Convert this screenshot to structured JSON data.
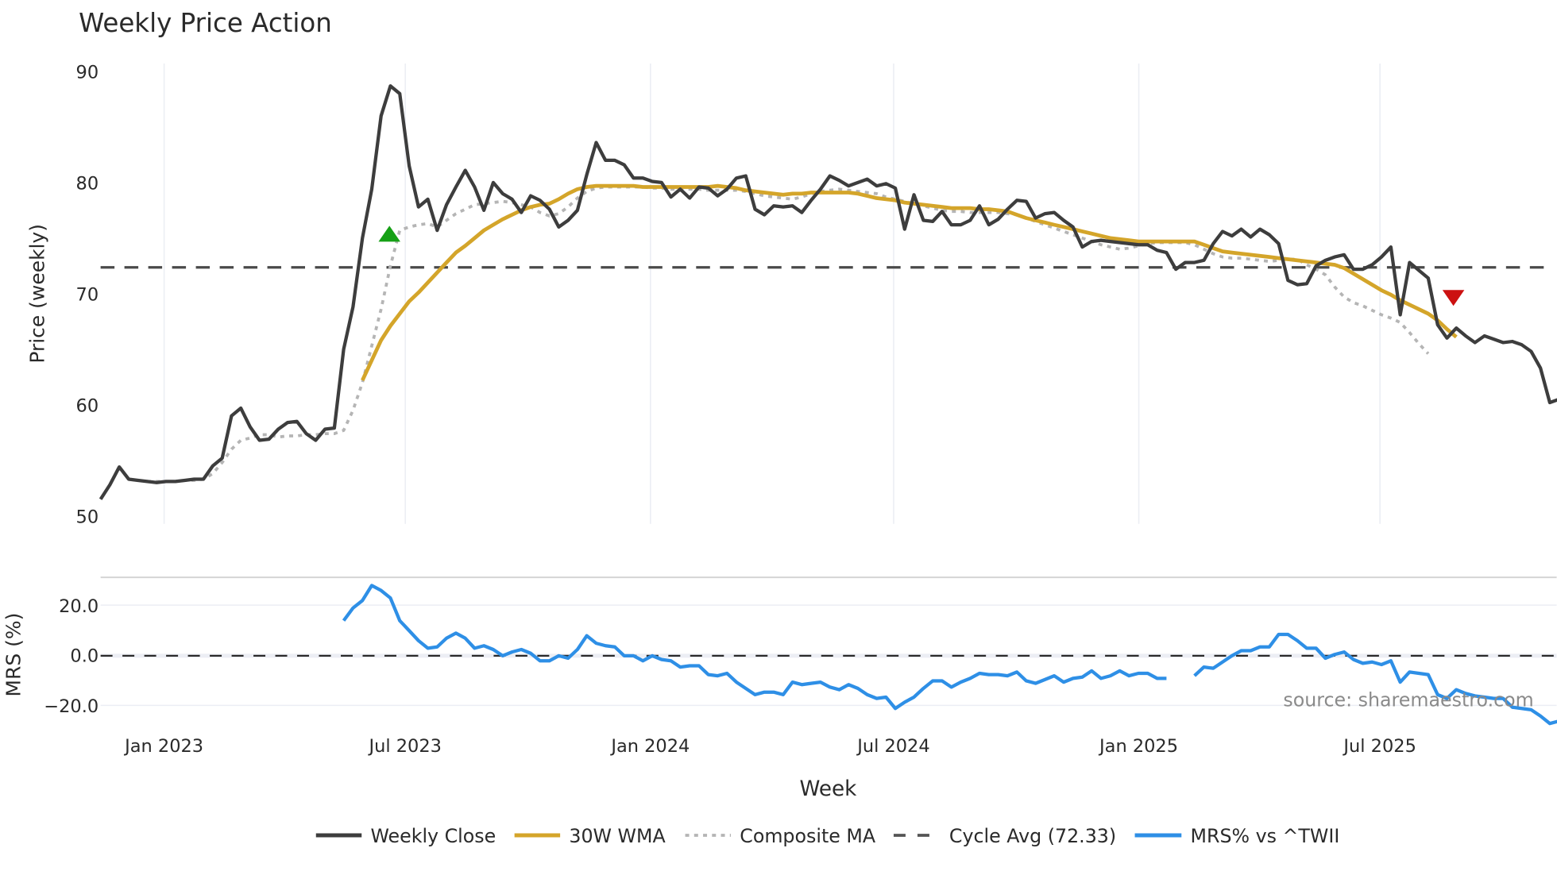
{
  "chart_data": [
    {
      "type": "line",
      "title": "Weekly Price Action",
      "xlabel": "Week",
      "ylabel": "Price (weekly)",
      "ylim": [
        50,
        90
      ],
      "yticks": [
        50,
        60,
        70,
        80,
        90
      ],
      "xticks": [
        "Jan 2023",
        "Jul 2023",
        "Jan 2024",
        "Jul 2024",
        "Jan 2025",
        "Jul 2025"
      ],
      "grid": "vertical",
      "legend_position": "bottom",
      "series": [
        {
          "name": "Weekly Close",
          "color": "#3d3d3d",
          "values": [
            51.5,
            52.8,
            54.4,
            53.3,
            53.2,
            53.1,
            53.0,
            53.1,
            53.1,
            53.2,
            53.3,
            53.3,
            54.5,
            55.2,
            59.0,
            59.7,
            58.0,
            56.8,
            56.9,
            57.8,
            58.4,
            58.5,
            57.4,
            56.8,
            57.8,
            57.9,
            65.0,
            68.8,
            75.0,
            79.4,
            86.0,
            88.7,
            88.0,
            81.5,
            77.8,
            78.5,
            75.7,
            78.0,
            79.6,
            81.1,
            79.6,
            77.5,
            80.0,
            79.0,
            78.5,
            77.3,
            78.8,
            78.4,
            77.6,
            76.0,
            76.6,
            77.5,
            80.7,
            83.6,
            82.0,
            82.0,
            81.6,
            80.4,
            80.4,
            80.1,
            80.0,
            78.7,
            79.4,
            78.6,
            79.6,
            79.5,
            78.8,
            79.4,
            80.4,
            80.6,
            77.6,
            77.1,
            77.9,
            77.8,
            77.9,
            77.3,
            78.4,
            79.4,
            80.6,
            80.2,
            79.7,
            80.0,
            80.3,
            79.7,
            79.9,
            79.5,
            75.8,
            78.9,
            76.6,
            76.5,
            77.4,
            76.2,
            76.2,
            76.6,
            77.9,
            76.2,
            76.7,
            77.6,
            78.4,
            78.3,
            76.8,
            77.2,
            77.3,
            76.6,
            76.0,
            74.2,
            74.7,
            74.8,
            74.7,
            74.6,
            74.5,
            74.4,
            74.4,
            73.9,
            73.7,
            72.2,
            72.8,
            72.8,
            73.0,
            74.5,
            75.6,
            75.2,
            75.8,
            75.1,
            75.8,
            75.3,
            74.5,
            71.2,
            70.8,
            70.9,
            72.5,
            73.0,
            73.3,
            73.5,
            72.2,
            72.2,
            72.6,
            73.3,
            74.2,
            68.1,
            72.8,
            72.1,
            71.4,
            67.2,
            66.0,
            66.9,
            66.2,
            65.6,
            66.2,
            65.9,
            65.6,
            65.7,
            65.4,
            64.8,
            63.3,
            60.2,
            60.5,
            60.3
          ]
        },
        {
          "name": "30W WMA",
          "color": "#d4a52a",
          "start_index": 28,
          "values": [
            62.2,
            64.0,
            65.8,
            67.1,
            68.2,
            69.3,
            70.1,
            71.0,
            71.9,
            72.8,
            73.7,
            74.3,
            75.0,
            75.7,
            76.2,
            76.7,
            77.1,
            77.5,
            77.8,
            78.0,
            78.1,
            78.5,
            79.0,
            79.4,
            79.6,
            79.7,
            79.7,
            79.7,
            79.7,
            79.7,
            79.6,
            79.6,
            79.6,
            79.6,
            79.6,
            79.6,
            79.6,
            79.6,
            79.7,
            79.6,
            79.5,
            79.3,
            79.2,
            79.1,
            79.0,
            78.9,
            79.0,
            79.0,
            79.1,
            79.1,
            79.1,
            79.1,
            79.1,
            79.0,
            78.8,
            78.6,
            78.5,
            78.4,
            78.2,
            78.1,
            78.0,
            77.9,
            77.8,
            77.7,
            77.7,
            77.7,
            77.6,
            77.6,
            77.5,
            77.4,
            77.1,
            76.8,
            76.6,
            76.4,
            76.2,
            76.0,
            75.8,
            75.6,
            75.4,
            75.2,
            75.0,
            74.9,
            74.8,
            74.7,
            74.7,
            74.7,
            74.7,
            74.7,
            74.7,
            74.7,
            74.4,
            74.1,
            73.8,
            73.7,
            73.6,
            73.5,
            73.4,
            73.3,
            73.2,
            73.1,
            73.0,
            72.9,
            72.8,
            72.7,
            72.6,
            72.3,
            71.8,
            71.3,
            70.8,
            70.3,
            69.9,
            69.4,
            69.0,
            68.6,
            68.2,
            67.6,
            66.8,
            66.1
          ]
        },
        {
          "name": "Composite MA",
          "color": "#b5b5b5",
          "start_index": 4,
          "values": [
            53.2,
            53.1,
            53.1,
            53.1,
            53.1,
            53.2,
            53.2,
            53.3,
            53.8,
            54.8,
            56.0,
            56.8,
            57.0,
            57.3,
            57.3,
            57.1,
            57.2,
            57.2,
            57.3,
            57.3,
            57.4,
            57.4,
            57.7,
            59.5,
            62.0,
            65.3,
            68.6,
            72.5,
            75.7,
            76.0,
            76.2,
            76.3,
            76.0,
            76.6,
            77.2,
            77.6,
            78.0,
            78.1,
            78.2,
            78.3,
            78.2,
            78.0,
            77.8,
            77.3,
            77.0,
            77.2,
            77.8,
            78.6,
            79.2,
            79.5,
            79.6,
            79.6,
            79.6,
            79.6,
            79.6,
            79.5,
            79.5,
            79.4,
            79.4,
            79.4,
            79.4,
            79.3,
            79.3,
            79.3,
            79.3,
            79.2,
            79.0,
            78.8,
            78.7,
            78.6,
            78.5,
            78.7,
            79.0,
            79.2,
            79.3,
            79.4,
            79.3,
            79.2,
            79.1,
            79.0,
            78.7,
            78.5,
            78.3,
            78.1,
            77.9,
            77.7,
            77.5,
            77.4,
            77.4,
            77.3,
            77.3,
            77.3,
            77.3,
            77.2,
            77.1,
            76.8,
            76.5,
            76.2,
            75.9,
            75.6,
            75.3,
            75.0,
            74.7,
            74.4,
            74.2,
            74.0,
            74.1,
            74.3,
            74.5,
            74.6,
            74.6,
            74.6,
            74.6,
            74.4,
            74.0,
            73.6,
            73.3,
            73.2,
            73.2,
            73.1,
            73.0,
            72.9,
            73.0,
            73.1,
            73.1,
            72.6,
            72.2,
            71.7,
            70.6,
            69.7,
            69.2,
            68.9,
            68.5,
            68.1,
            67.8,
            67.4,
            66.5,
            65.5,
            64.6
          ]
        },
        {
          "name": "Cycle Avg (72.33)",
          "color": "#4a4a4a",
          "constant": 72.33
        }
      ],
      "annotations": [
        {
          "type": "buy-marker",
          "shape": "triangle-up",
          "color": "#16a016",
          "week_index": 31,
          "value": 75.3
        },
        {
          "type": "sell-marker",
          "shape": "triangle-down",
          "color": "#cc1111",
          "week_index": 144,
          "value": 69.7
        },
        {
          "type": "text",
          "text": "source: sharemaestro.com"
        }
      ]
    },
    {
      "type": "line",
      "title": "",
      "xlabel": "Week",
      "ylabel": "MRS (%)",
      "yticks": [
        -20.0,
        0.0,
        20.0
      ],
      "ylim": [
        -27,
        32
      ],
      "series": [
        {
          "name": "MRS% vs ^TWII",
          "color": "#2e8fe6",
          "start_index": 26,
          "values": [
            14,
            19,
            22,
            28,
            26,
            23,
            14,
            10,
            6,
            3,
            3.5,
            7,
            9,
            7,
            3,
            4,
            2.5,
            0,
            1.5,
            2.5,
            1,
            -2,
            -2,
            0,
            -1,
            2.5,
            8,
            5,
            4,
            3.5,
            0,
            0,
            -2,
            0,
            -1.5,
            -2,
            -4.5,
            -4,
            -4,
            -7.5,
            -8,
            -7,
            -10.5,
            -13,
            -15.5,
            -14.5,
            -14.5,
            -15.5,
            -10.5,
            -11.5,
            -11,
            -10.5,
            -12.5,
            -13.5,
            -11.5,
            -13,
            -15.5,
            -17,
            -16.5,
            -21,
            -18.5,
            -16.5,
            -13,
            -10,
            -10,
            -12.5,
            -10.5,
            -9,
            -7,
            -7.5,
            -7.5,
            -8,
            -6.5,
            -10,
            -11,
            -9.5,
            -8,
            -10.5,
            -9,
            -8.5,
            -6,
            -9,
            -8,
            -6,
            -8,
            -7,
            -7,
            -9,
            -9,
            null,
            null,
            -8,
            -4.5,
            -5,
            -2.5,
            0,
            2,
            2,
            3.5,
            3.5,
            8.5,
            8.5,
            6,
            3,
            3,
            -1,
            0.5,
            1.5,
            -1.5,
            -3,
            -2.5,
            -3.5,
            -2,
            -10.5,
            -6.5,
            -7,
            -7.5,
            -15.5,
            -17,
            -13.5,
            -15,
            -16,
            -16.5,
            -17,
            -17,
            -20.5,
            -21,
            -21.5,
            -24,
            -27,
            -26,
            -25
          ]
        },
        {
          "name": "zero-line",
          "constant": 0
        }
      ]
    }
  ],
  "header": {
    "title": "Weekly Price Action"
  },
  "axes": {
    "price_ylabel": "Price (weekly)",
    "mrs_ylabel": "MRS (%)",
    "xlabel": "Week",
    "price_ticks": [
      "90",
      "80",
      "70",
      "60",
      "50"
    ],
    "mrs_ticks": [
      "20.0",
      "0.0",
      "−20.0"
    ],
    "x_ticks": [
      "Jan 2023",
      "Jul 2023",
      "Jan 2024",
      "Jul 2024",
      "Jan 2025",
      "Jul 2025"
    ]
  },
  "watermark": "source: sharemaestro.com",
  "legend": {
    "items": [
      {
        "label": "Weekly Close"
      },
      {
        "label": "30W WMA"
      },
      {
        "label": "Composite MA"
      },
      {
        "label": "Cycle Avg (72.33)"
      },
      {
        "label": "MRS% vs ^TWII"
      }
    ]
  }
}
